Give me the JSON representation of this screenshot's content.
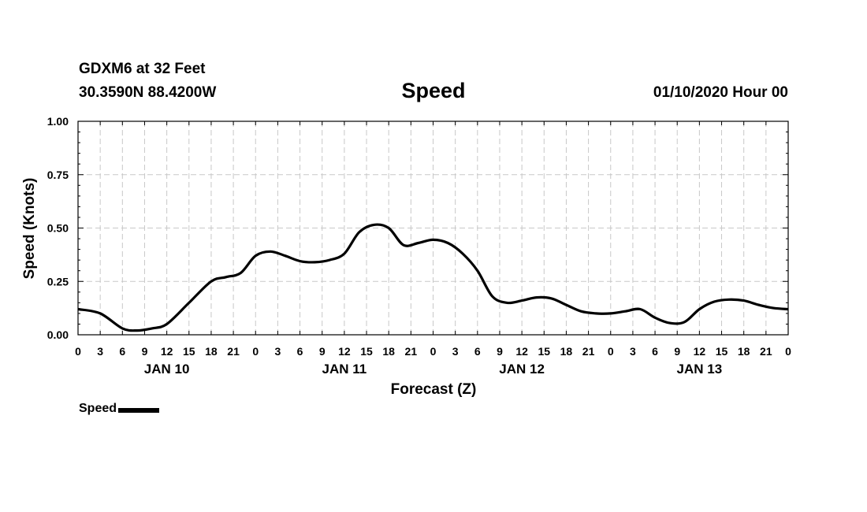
{
  "header": {
    "station": "GDXM6 at 32 Feet",
    "coords": "30.3590N 88.4200W",
    "title": "Speed",
    "run_time": "01/10/2020 Hour 00"
  },
  "legend": {
    "label": "Speed",
    "color": "#000000"
  },
  "chart_data": {
    "type": "line",
    "title": "Speed",
    "xlabel": "Forecast (Z)",
    "ylabel": "Speed (Knots)",
    "xlim": [
      0,
      96
    ],
    "ylim": [
      0,
      1
    ],
    "grid": true,
    "legend_position": "bottom-left",
    "x_tick_labels": [
      "0",
      "3",
      "6",
      "9",
      "12",
      "15",
      "18",
      "21",
      "0",
      "3",
      "6",
      "9",
      "12",
      "15",
      "18",
      "21",
      "0",
      "3",
      "6",
      "9",
      "12",
      "15",
      "18",
      "21",
      "0",
      "3",
      "6",
      "9",
      "12",
      "15",
      "18",
      "21",
      "0"
    ],
    "y_tick_labels": [
      "0.00",
      "0.25",
      "0.50",
      "0.75",
      "1.00"
    ],
    "day_labels": [
      "JAN 10",
      "JAN 11",
      "JAN 12",
      "JAN 13"
    ],
    "series": [
      {
        "name": "Speed",
        "color": "#000000",
        "x": [
          0,
          3,
          6,
          8,
          10,
          12,
          15,
          18,
          20,
          22,
          24,
          26,
          28,
          30,
          32,
          34,
          36,
          38,
          40,
          42,
          44,
          46,
          48,
          50,
          52,
          54,
          56,
          58,
          60,
          62,
          64,
          66,
          68,
          70,
          72,
          74,
          76,
          78,
          80,
          82,
          84,
          86,
          88,
          90,
          92,
          94,
          96
        ],
        "y": [
          0.12,
          0.1,
          0.03,
          0.02,
          0.03,
          0.05,
          0.15,
          0.25,
          0.27,
          0.29,
          0.37,
          0.39,
          0.37,
          0.345,
          0.34,
          0.35,
          0.38,
          0.48,
          0.515,
          0.5,
          0.42,
          0.43,
          0.445,
          0.43,
          0.38,
          0.3,
          0.18,
          0.15,
          0.16,
          0.175,
          0.17,
          0.14,
          0.11,
          0.1,
          0.1,
          0.11,
          0.12,
          0.08,
          0.055,
          0.06,
          0.12,
          0.155,
          0.165,
          0.16,
          0.14,
          0.125,
          0.12
        ]
      }
    ]
  }
}
